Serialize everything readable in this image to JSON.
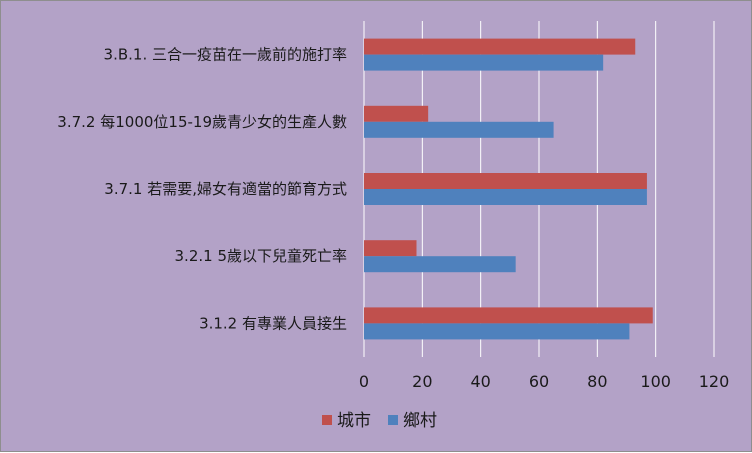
{
  "chart_data": {
    "type": "bar",
    "orientation": "horizontal",
    "categories": [
      "3.B.1. 三合一疫苗在一歲前的施打率",
      "3.7.2 每1000位15-19歲青少女的生產人數",
      "3.7.1 若需要,婦女有適當的節育方式",
      "3.2.1 5歲以下兒童死亡率",
      "3.1.2 有專業人員接生"
    ],
    "series": [
      {
        "name": "城市",
        "color": "#c0504d",
        "values": [
          93,
          22,
          97,
          18,
          99
        ]
      },
      {
        "name": "鄉村",
        "color": "#4f81bd",
        "values": [
          82,
          65,
          97,
          52,
          91
        ]
      }
    ],
    "xlim": [
      0,
      120
    ],
    "xticks": [
      "0",
      "20",
      "40",
      "60",
      "80",
      "100",
      "120"
    ],
    "grid": true,
    "legend_position": "bottom",
    "background_color": "#b3a2c7",
    "title": "",
    "xlabel": "",
    "ylabel": ""
  }
}
